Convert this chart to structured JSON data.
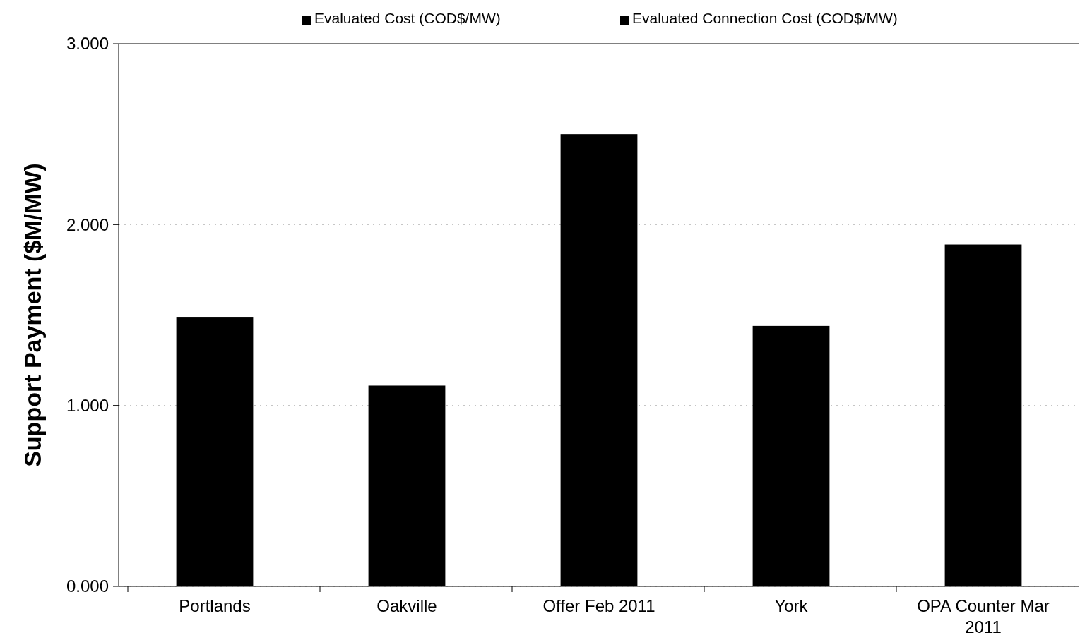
{
  "chart_data": {
    "type": "bar",
    "stacked": true,
    "ylabel": "Support Payment ($M/MW)",
    "categories": [
      "Portlands",
      "Oakville",
      "Offer  Feb 2011",
      "York",
      "OPA Counter Mar 2011"
    ],
    "series": [
      {
        "name": "Evaluated Cost (COD$/MW)",
        "color": "#000000",
        "values": [
          1.49,
          1.11,
          2.5,
          1.44,
          1.89
        ]
      },
      {
        "name": "Evaluated Connection Cost (COD$/MW)",
        "color": "#000000",
        "values": [
          0,
          0,
          0,
          0,
          0
        ]
      }
    ],
    "ylim": [
      0,
      3
    ],
    "yticks": [
      {
        "value": 0,
        "label": "0.000"
      },
      {
        "value": 1,
        "label": "1.000"
      },
      {
        "value": 2,
        "label": "2.000"
      },
      {
        "value": 3,
        "label": "3.000"
      }
    ],
    "grid": "y",
    "legend": "top"
  }
}
